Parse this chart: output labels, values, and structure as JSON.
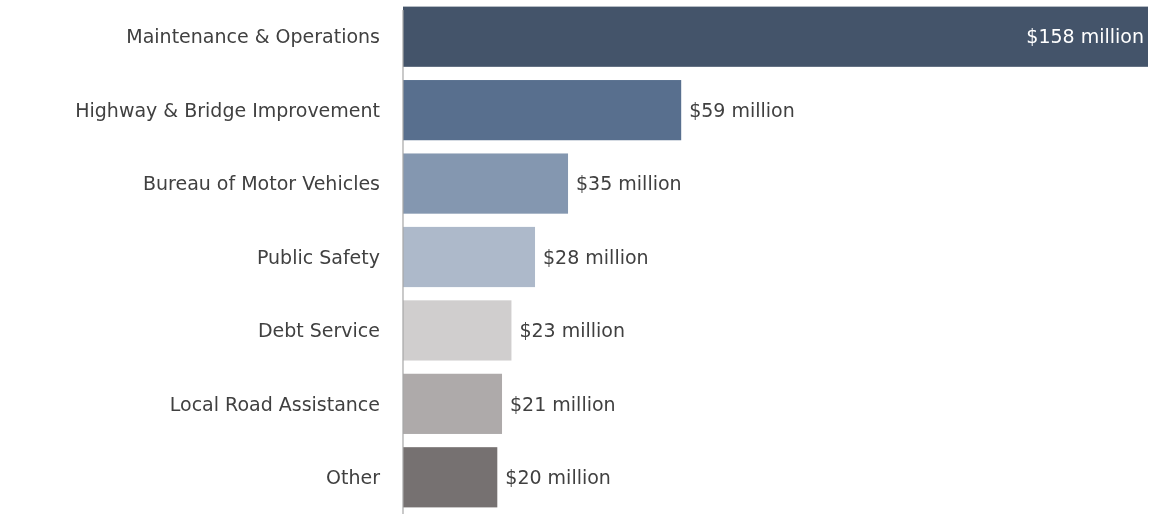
{
  "chart_data": {
    "type": "bar",
    "orientation": "horizontal",
    "categories": [
      "Maintenance & Operations",
      "Highway & Bridge Improvement",
      "Bureau of Motor Vehicles",
      "Public Safety",
      "Debt Service",
      "Local Road Assistance",
      "Other"
    ],
    "values": [
      158,
      59,
      35,
      28,
      23,
      21,
      20
    ],
    "colors": [
      "#44546a",
      "#586f8e",
      "#8497b0",
      "#adb9ca",
      "#d0cece",
      "#aeaaaa",
      "#767171"
    ],
    "value_labels": [
      "$158 million",
      "$59 million",
      "$35 million",
      "$28 million",
      "$23 million",
      "$21 million",
      "$20 million"
    ],
    "xlim": [
      0,
      158
    ],
    "tick_labels": "y"
  }
}
